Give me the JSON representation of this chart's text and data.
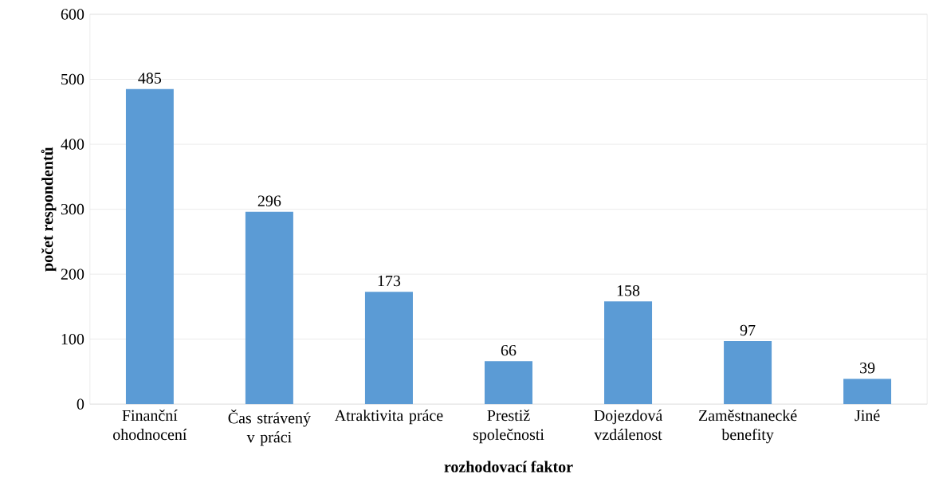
{
  "chart_data": {
    "type": "bar",
    "categories": [
      "Finanční ohodnocení",
      "Čas strávený v práci",
      "Atraktivita práce",
      "Prestiž společnosti",
      "Dojezdová vzdálenost",
      "Zaměstnanecké benefity",
      "Jiné"
    ],
    "values": [
      485,
      296,
      173,
      66,
      158,
      97,
      39
    ],
    "color": "#5b9bd5",
    "xlabel": "rozhodovací faktor",
    "ylabel": "počet respondentů",
    "ylim": [
      0,
      600
    ],
    "yticks": [
      0,
      100,
      200,
      300,
      400,
      500,
      600
    ],
    "grid": "y",
    "data_labels": true
  }
}
